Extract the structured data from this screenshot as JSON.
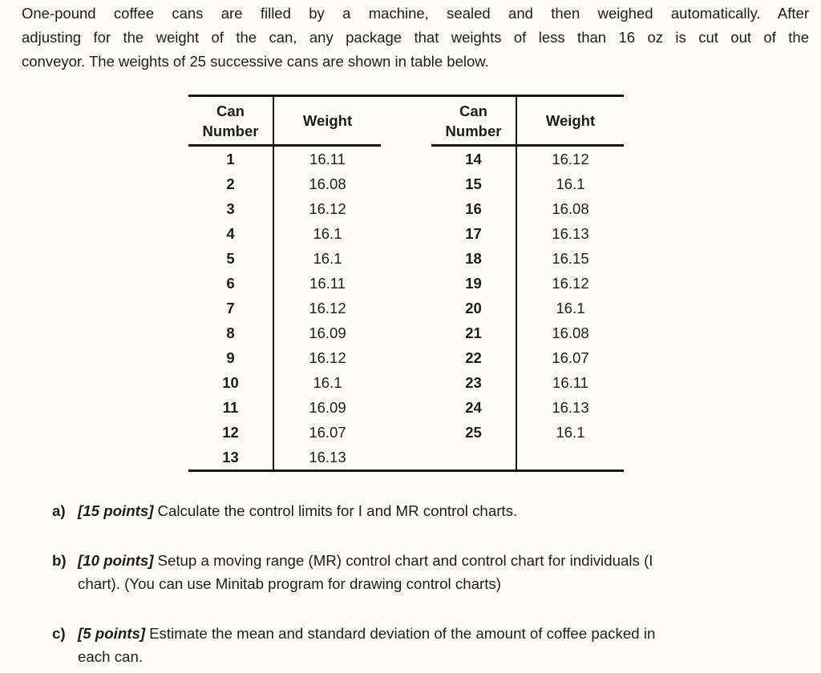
{
  "intro": {
    "lines": [
      "One-pound coffee cans are filled by a machine, sealed and then weighed automatically. After",
      "adjusting for the weight of the can, any package that weights of less than 16 oz is cut out of the",
      "conveyor. The weights of 25 successive cans are shown in table below."
    ]
  },
  "table": {
    "header": {
      "can_number": "Can Number",
      "weight": "Weight"
    },
    "left_rows": [
      {
        "can": "1",
        "weight": "16.11"
      },
      {
        "can": "2",
        "weight": "16.08"
      },
      {
        "can": "3",
        "weight": "16.12"
      },
      {
        "can": "4",
        "weight": "16.1"
      },
      {
        "can": "5",
        "weight": "16.1"
      },
      {
        "can": "6",
        "weight": "16.11"
      },
      {
        "can": "7",
        "weight": "16.12"
      },
      {
        "can": "8",
        "weight": "16.09"
      },
      {
        "can": "9",
        "weight": "16.12"
      },
      {
        "can": "10",
        "weight": "16.1"
      },
      {
        "can": "11",
        "weight": "16.09"
      },
      {
        "can": "12",
        "weight": "16.07"
      },
      {
        "can": "13",
        "weight": "16.13"
      }
    ],
    "right_rows": [
      {
        "can": "14",
        "weight": "16.12"
      },
      {
        "can": "15",
        "weight": "16.1"
      },
      {
        "can": "16",
        "weight": "16.08"
      },
      {
        "can": "17",
        "weight": "16.13"
      },
      {
        "can": "18",
        "weight": "16.15"
      },
      {
        "can": "19",
        "weight": "16.12"
      },
      {
        "can": "20",
        "weight": "16.1"
      },
      {
        "can": "21",
        "weight": "16.08"
      },
      {
        "can": "22",
        "weight": "16.07"
      },
      {
        "can": "23",
        "weight": "16.11"
      },
      {
        "can": "24",
        "weight": "16.13"
      },
      {
        "can": "25",
        "weight": "16.1"
      }
    ]
  },
  "questions": [
    {
      "label": "a)",
      "points": "[15 points]",
      "lines": [
        "Calculate the control limits for I and MR control charts."
      ]
    },
    {
      "label": "b)",
      "points": "[10 points]",
      "lines": [
        "Setup a moving range (MR) control chart and control chart for individuals (I",
        "chart). (You can use Minitab program for drawing control charts)"
      ]
    },
    {
      "label": "c)",
      "points": "[5 points]",
      "lines": [
        "Estimate the mean and standard deviation of the amount of coffee packed in",
        "each can."
      ]
    }
  ],
  "colors": {
    "background": "#fefdf5",
    "text": "#1c1c1c",
    "rule": "#161616"
  }
}
